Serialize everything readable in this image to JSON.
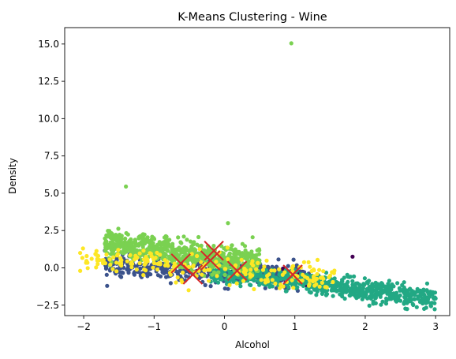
{
  "chart_data": {
    "type": "scatter",
    "title": "K-Means Clustering - Wine",
    "xlabel": "Alcohol",
    "ylabel": "Density",
    "xlim": [
      -2.27,
      3.2
    ],
    "ylim": [
      -3.2,
      16.1
    ],
    "xticks": [
      -2,
      -1,
      0,
      1,
      2,
      3
    ],
    "yticks": [
      -2.5,
      0.0,
      2.5,
      5.0,
      7.5,
      10.0,
      12.5,
      15.0
    ],
    "xtick_labels": [
      "−2",
      "−1",
      "0",
      "1",
      "2",
      "3"
    ],
    "ytick_labels": [
      "−2.5",
      "0.0",
      "2.5",
      "5.0",
      "7.5",
      "10.0",
      "12.5",
      "15.0"
    ],
    "grid": false,
    "legend": null,
    "clusters": [
      {
        "color": "#440154",
        "x_range": [
          -0.4,
          1.2
        ],
        "y_center_at_x0": -0.25,
        "y_slope": -0.3,
        "y_spread": 0.25,
        "count": 110
      },
      {
        "color": "#3b528b",
        "x_range": [
          -1.7,
          1.2
        ],
        "y_center_at_x0": -0.3,
        "y_slope": -0.25,
        "y_spread": 0.38,
        "count": 420
      },
      {
        "color": "#21918c",
        "x_range": [
          -0.2,
          0.8
        ],
        "y_center_at_x0": -0.3,
        "y_slope": -0.3,
        "y_spread": 0.35,
        "count": 0
      },
      {
        "color": "#22a884",
        "x_range": [
          -0.2,
          3.0
        ],
        "y_center_at_x0": -0.4,
        "y_slope": -0.55,
        "y_spread": 0.35,
        "count": 700
      },
      {
        "color": "#7ad151",
        "x_range": [
          -1.7,
          0.5
        ],
        "y_center_at_x0": 0.6,
        "y_slope": -0.65,
        "y_spread": 0.45,
        "count": 700
      },
      {
        "color": "#fde725",
        "x_range": [
          -2.05,
          1.6
        ],
        "y_center_at_x0": -0.2,
        "y_slope": -0.4,
        "y_spread": 0.5,
        "count": 220
      }
    ],
    "outliers": [
      {
        "x": 0.95,
        "y": 15.05,
        "color": "#7ad151"
      },
      {
        "x": -1.4,
        "y": 5.45,
        "color": "#7ad151"
      },
      {
        "x": 0.05,
        "y": 3.0,
        "color": "#7ad151"
      },
      {
        "x": 1.82,
        "y": 0.75,
        "color": "#440154"
      },
      {
        "x": -2.05,
        "y": 1.0,
        "color": "#fde725"
      },
      {
        "x": -2.05,
        "y": -0.2,
        "color": "#fde725"
      },
      {
        "x": 3.0,
        "y": -2.05,
        "color": "#22a884"
      },
      {
        "x": 2.88,
        "y": -1.05,
        "color": "#22a884"
      },
      {
        "x": 0.4,
        "y": 2.05,
        "color": "#7ad151"
      }
    ],
    "centroids": [
      {
        "x": -0.62,
        "y": 0.3
      },
      {
        "x": -0.45,
        "y": -0.45
      },
      {
        "x": -0.15,
        "y": 1.15
      },
      {
        "x": -0.2,
        "y": 0.5
      },
      {
        "x": 0.18,
        "y": -0.2
      },
      {
        "x": 0.97,
        "y": -0.45
      }
    ],
    "centroid_color": "#d62728"
  }
}
